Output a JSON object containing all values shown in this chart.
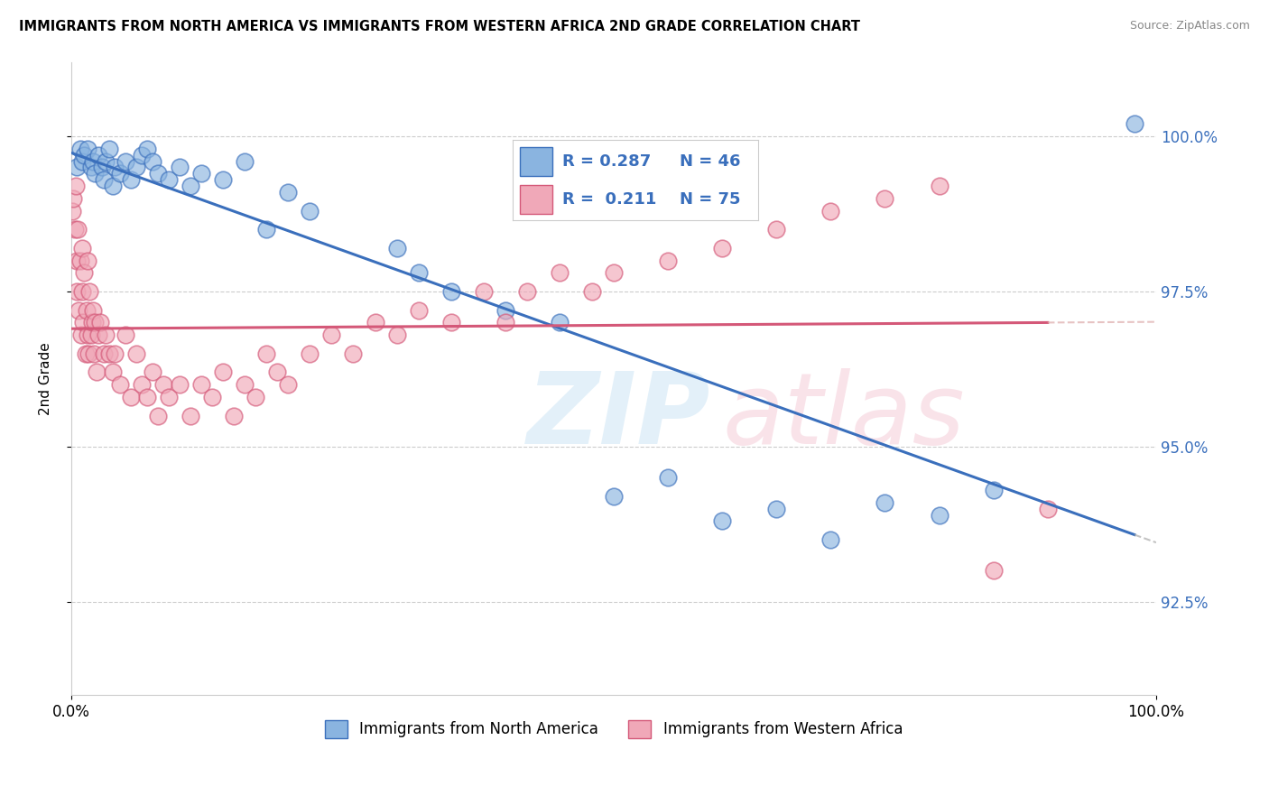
{
  "title": "IMMIGRANTS FROM NORTH AMERICA VS IMMIGRANTS FROM WESTERN AFRICA 2ND GRADE CORRELATION CHART",
  "source": "Source: ZipAtlas.com",
  "ylabel": "2nd Grade",
  "y_ticks": [
    92.5,
    95.0,
    97.5,
    100.0
  ],
  "y_tick_labels": [
    "92.5%",
    "95.0%",
    "97.5%",
    "100.0%"
  ],
  "x_range": [
    0.0,
    100.0
  ],
  "y_range": [
    91.0,
    101.2
  ],
  "blue_R": 0.287,
  "blue_N": 46,
  "pink_R": 0.211,
  "pink_N": 75,
  "blue_color": "#8ab4e0",
  "pink_color": "#f0a8b8",
  "blue_line_color": "#3a6fbc",
  "pink_line_color": "#d45878",
  "legend_label_blue": "Immigrants from North America",
  "legend_label_pink": "Immigrants from Western Africa",
  "blue_scatter_x": [
    0.5,
    0.8,
    1.0,
    1.2,
    1.5,
    1.8,
    2.0,
    2.2,
    2.5,
    2.8,
    3.0,
    3.2,
    3.5,
    3.8,
    4.0,
    4.5,
    5.0,
    5.5,
    6.0,
    6.5,
    7.0,
    7.5,
    8.0,
    9.0,
    10.0,
    11.0,
    12.0,
    14.0,
    16.0,
    18.0,
    20.0,
    22.0,
    30.0,
    32.0,
    35.0,
    40.0,
    45.0,
    50.0,
    55.0,
    60.0,
    65.0,
    70.0,
    75.0,
    80.0,
    85.0,
    98.0
  ],
  "blue_scatter_y": [
    99.5,
    99.8,
    99.6,
    99.7,
    99.8,
    99.5,
    99.6,
    99.4,
    99.7,
    99.5,
    99.3,
    99.6,
    99.8,
    99.2,
    99.5,
    99.4,
    99.6,
    99.3,
    99.5,
    99.7,
    99.8,
    99.6,
    99.4,
    99.3,
    99.5,
    99.2,
    99.4,
    99.3,
    99.6,
    98.5,
    99.1,
    98.8,
    98.2,
    97.8,
    97.5,
    97.2,
    97.0,
    94.2,
    94.5,
    93.8,
    94.0,
    93.5,
    94.1,
    93.9,
    94.3,
    100.2
  ],
  "pink_scatter_x": [
    0.1,
    0.2,
    0.3,
    0.4,
    0.5,
    0.5,
    0.6,
    0.7,
    0.8,
    0.9,
    1.0,
    1.0,
    1.1,
    1.2,
    1.3,
    1.4,
    1.5,
    1.5,
    1.6,
    1.7,
    1.8,
    1.9,
    2.0,
    2.1,
    2.2,
    2.3,
    2.5,
    2.7,
    3.0,
    3.2,
    3.5,
    3.8,
    4.0,
    4.5,
    5.0,
    5.5,
    6.0,
    6.5,
    7.0,
    7.5,
    8.0,
    8.5,
    9.0,
    10.0,
    11.0,
    12.0,
    13.0,
    14.0,
    15.0,
    16.0,
    17.0,
    18.0,
    19.0,
    20.0,
    22.0,
    24.0,
    26.0,
    28.0,
    30.0,
    32.0,
    35.0,
    38.0,
    40.0,
    42.0,
    45.0,
    48.0,
    50.0,
    55.0,
    60.0,
    65.0,
    70.0,
    75.0,
    80.0,
    85.0,
    90.0
  ],
  "pink_scatter_y": [
    98.8,
    99.0,
    98.5,
    99.2,
    98.0,
    97.5,
    98.5,
    97.2,
    98.0,
    96.8,
    97.5,
    98.2,
    97.0,
    97.8,
    96.5,
    97.2,
    96.8,
    98.0,
    96.5,
    97.5,
    96.8,
    97.0,
    97.2,
    96.5,
    97.0,
    96.2,
    96.8,
    97.0,
    96.5,
    96.8,
    96.5,
    96.2,
    96.5,
    96.0,
    96.8,
    95.8,
    96.5,
    96.0,
    95.8,
    96.2,
    95.5,
    96.0,
    95.8,
    96.0,
    95.5,
    96.0,
    95.8,
    96.2,
    95.5,
    96.0,
    95.8,
    96.5,
    96.2,
    96.0,
    96.5,
    96.8,
    96.5,
    97.0,
    96.8,
    97.2,
    97.0,
    97.5,
    97.0,
    97.5,
    97.8,
    97.5,
    97.8,
    98.0,
    98.2,
    98.5,
    98.8,
    99.0,
    99.2,
    93.0,
    94.0
  ]
}
